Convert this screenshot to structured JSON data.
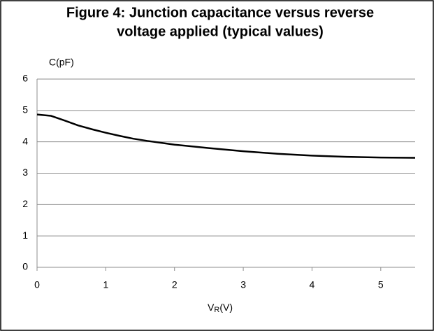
{
  "chart_data": {
    "type": "line",
    "title_lines": [
      "Figure 4: Junction capacitance versus reverse",
      "voltage applied (typical values)"
    ],
    "ylabel": "C(pF)",
    "xlabel_parts": [
      "V",
      "R",
      "(V)"
    ],
    "series": [
      {
        "name": "C",
        "color": "#000000",
        "x": [
          0,
          0.2,
          0.4,
          0.6,
          0.8,
          1.0,
          1.2,
          1.4,
          1.6,
          1.8,
          2.0,
          2.5,
          3.0,
          3.5,
          4.0,
          4.5,
          5.0,
          5.5
        ],
        "values": [
          4.87,
          4.83,
          4.68,
          4.52,
          4.4,
          4.29,
          4.19,
          4.1,
          4.03,
          3.97,
          3.91,
          3.8,
          3.7,
          3.62,
          3.56,
          3.52,
          3.5,
          3.49
        ]
      }
    ],
    "xlim": [
      0,
      5.5
    ],
    "xticks": [
      0,
      1,
      2,
      3,
      4,
      5
    ],
    "ylim": [
      0,
      6
    ],
    "yticks": [
      0,
      1,
      2,
      3,
      4,
      5,
      6
    ],
    "grid": true
  }
}
